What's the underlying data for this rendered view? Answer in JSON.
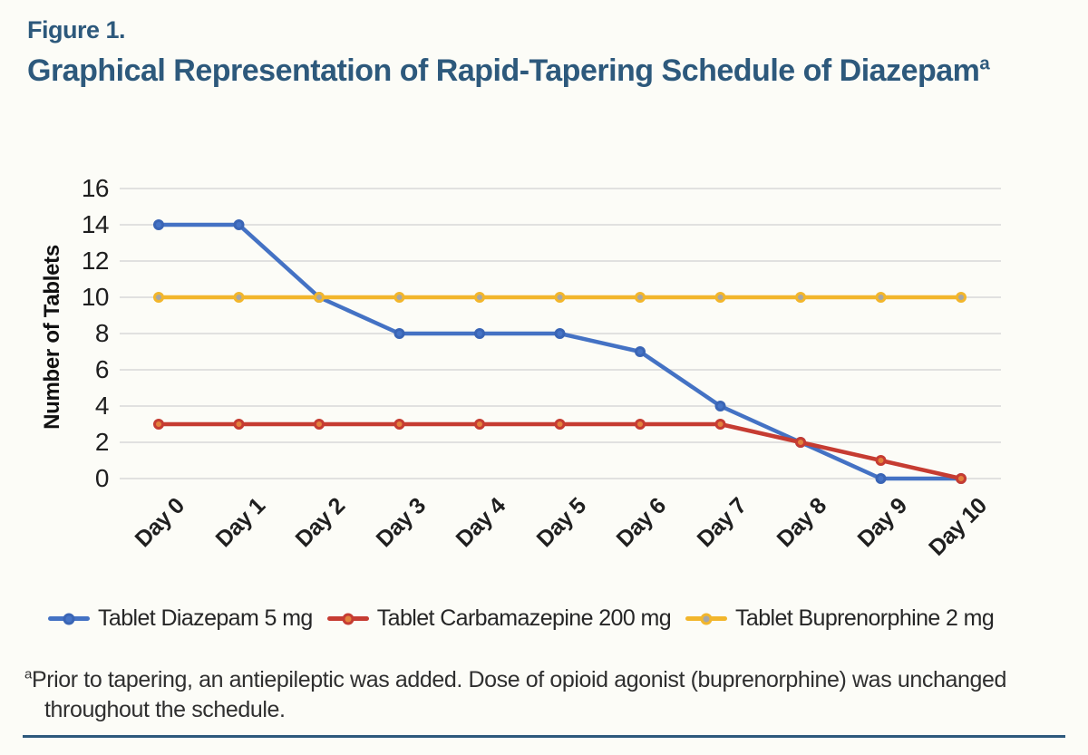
{
  "figure": {
    "label": "Figure 1.",
    "title": "Graphical Representation of Rapid-Tapering Schedule of Diazepam",
    "title_superscript": "a"
  },
  "footnote": {
    "marker": "a",
    "text": "Prior to tapering, an antiepileptic was added. Dose of opioid agonist (buprenorphine) was unchanged throughout the schedule."
  },
  "colors": {
    "title": "#2d597c",
    "bottom_rule": "#2d597c",
    "gridline": "#d8d8d8",
    "background": "#fcfcf7",
    "tick_text": "#1f1f1f"
  },
  "chart_data": {
    "type": "line",
    "categories": [
      "Day 0",
      "Day 1",
      "Day 2",
      "Day 3",
      "Day 4",
      "Day 5",
      "Day 6",
      "Day 7",
      "Day 8",
      "Day 9",
      "Day 10"
    ],
    "series": [
      {
        "name": "Tablet Diazepam 5 mg",
        "values": [
          14,
          14,
          10,
          8,
          8,
          8,
          7,
          4,
          2,
          0,
          0
        ],
        "line_color": "#4472c4",
        "marker_fill": "#4674c6",
        "marker_border": "#3a65b5"
      },
      {
        "name": "Tablet Carbamazepine 200 mg",
        "values": [
          3,
          3,
          3,
          3,
          3,
          3,
          3,
          3,
          2,
          1,
          0
        ],
        "line_color": "#c63c32",
        "marker_fill": "#e2823d",
        "marker_border": "#c63c32"
      },
      {
        "name": "Tablet Buprenorphine 2 mg",
        "values": [
          10,
          10,
          10,
          10,
          10,
          10,
          10,
          10,
          10,
          10,
          10
        ],
        "line_color": "#f2b62c",
        "marker_fill": "#a6a6a6",
        "marker_border": "#f2b62c"
      }
    ],
    "xlabel": "",
    "ylabel": "Number of Tablets",
    "ylim": [
      0,
      16
    ],
    "ytick_step": 2,
    "grid": true,
    "legend_position": "bottom"
  }
}
